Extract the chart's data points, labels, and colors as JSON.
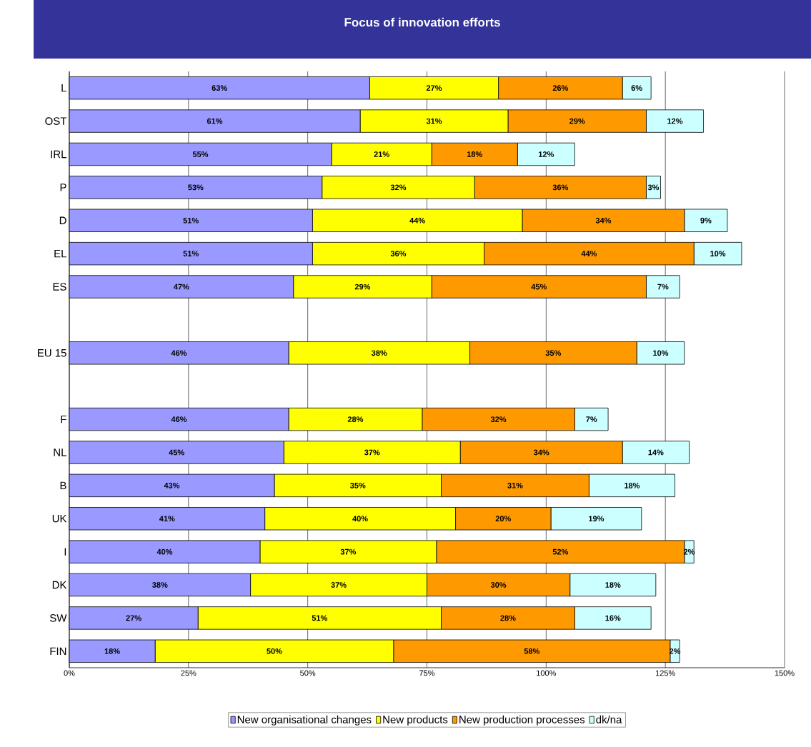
{
  "chart_data": {
    "type": "bar",
    "orientation": "horizontal",
    "stacked": true,
    "title": "Focus of innovation efforts",
    "categories": [
      "L",
      "OST",
      "IRL",
      "P",
      "D",
      "EL",
      "ES",
      null,
      "EU 15",
      null,
      "F",
      "NL",
      "B",
      "UK",
      "I",
      "DK",
      "SW",
      "FIN"
    ],
    "series": [
      {
        "name": "New organisational changes",
        "color": "#9999ff",
        "values": [
          63,
          61,
          55,
          53,
          51,
          51,
          47,
          null,
          46,
          null,
          46,
          45,
          43,
          41,
          40,
          38,
          27,
          18
        ],
        "value_labels": [
          "63%",
          "61%",
          "55%",
          "53%",
          "51%",
          "51%",
          "47%",
          null,
          "46%",
          null,
          "46%",
          "45%",
          "43%",
          "41%",
          "40%",
          "38%",
          "27%",
          "18%"
        ]
      },
      {
        "name": "New products",
        "color": "#ffff00",
        "values": [
          27,
          31,
          21,
          32,
          44,
          36,
          29,
          null,
          38,
          null,
          28,
          37,
          35,
          40,
          37,
          37,
          51,
          50
        ],
        "value_labels": [
          "27%",
          "31%",
          "21%",
          "32%",
          "44%",
          "36%",
          "29%",
          null,
          "38%",
          null,
          "28%",
          "37%",
          "35%",
          "40%",
          "37%",
          "37%",
          "51%",
          "50%"
        ]
      },
      {
        "name": "New production processes",
        "color": "#ff9900",
        "values": [
          26,
          29,
          18,
          36,
          34,
          44,
          45,
          null,
          35,
          null,
          32,
          34,
          31,
          20,
          52,
          30,
          28,
          58
        ],
        "value_labels": [
          "26%",
          "29%",
          "18%",
          "36%",
          "34%",
          "44%",
          "45%",
          null,
          "35%",
          null,
          "32%",
          "34%",
          "31%",
          "20%",
          "52%",
          "30%",
          "28%",
          "58%"
        ]
      },
      {
        "name": "dk/na",
        "color": "#ccffff",
        "values": [
          6,
          12,
          12,
          3,
          9,
          10,
          7,
          null,
          10,
          null,
          7,
          14,
          18,
          19,
          2,
          18,
          16,
          2
        ],
        "value_labels": [
          "6%",
          "12%",
          "12%",
          "3%",
          "9%",
          "10%",
          "7%",
          null,
          "10%",
          null,
          "7%",
          "14%",
          "18%",
          "19%",
          "2%",
          "18%",
          "16%",
          "2%"
        ]
      }
    ],
    "xlim": [
      0,
      150
    ],
    "xticks": [
      {
        "value": 0,
        "label": "0%"
      },
      {
        "value": 25,
        "label": "25%"
      },
      {
        "value": 50,
        "label": "50%"
      },
      {
        "value": 75,
        "label": "75%"
      },
      {
        "value": 100,
        "label": "100%"
      },
      {
        "value": 125,
        "label": "125%"
      },
      {
        "value": 150,
        "label": "150%"
      }
    ],
    "grid": "x",
    "legend": "bottom"
  }
}
